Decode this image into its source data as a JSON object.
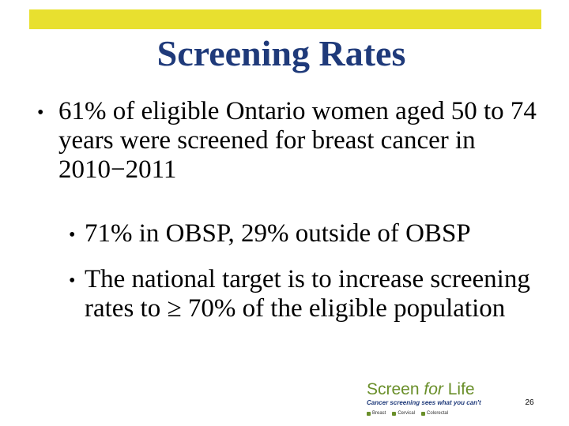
{
  "slide": {
    "title": "Screening Rates",
    "bullets": [
      {
        "symbol": "•",
        "text": "61% of eligible Ontario women aged 50 to 74 years were screened for breast cancer in 2010−2011"
      },
      {
        "symbol": "•",
        "text": "71% in OBSP, 29% outside of OBSP"
      },
      {
        "symbol": "•",
        "text": "The national target is to increase screening rates to ≥ 70% of the eligible population"
      }
    ],
    "page_number": "26"
  },
  "logo": {
    "main_text": "Screen ",
    "main_italic": "for",
    "main_end": " Life",
    "tagline": "Cancer screening sees what you can't",
    "categories": [
      "Breast",
      "Cervical",
      "Colorectal"
    ],
    "color": "#6a8f2a"
  },
  "colors": {
    "accent_bar": "#e8e02f",
    "title": "#1f3a7a"
  }
}
